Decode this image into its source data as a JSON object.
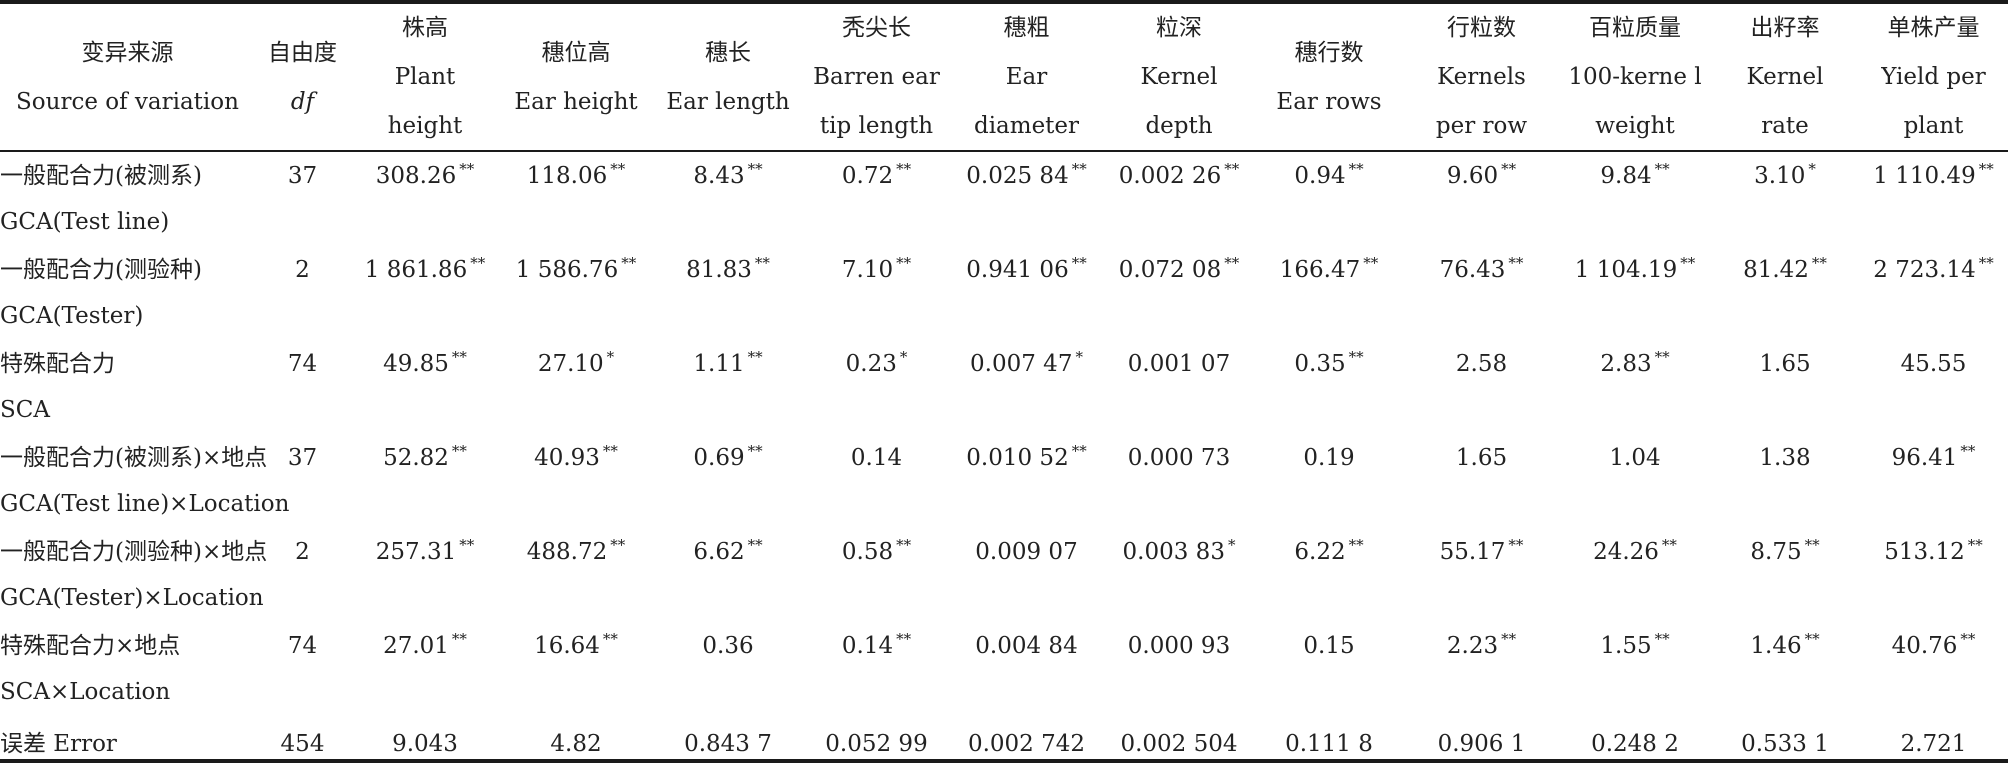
{
  "columns": [
    {
      "zh": "变异来源",
      "en": [
        "Source of variation"
      ]
    },
    {
      "zh": "自由度",
      "en": [
        "df"
      ]
    },
    {
      "zh": "株高",
      "en": [
        "Plant",
        "height"
      ]
    },
    {
      "zh": "穗位高",
      "en": [
        "Ear height"
      ]
    },
    {
      "zh": "穗长",
      "en": [
        "Ear length"
      ]
    },
    {
      "zh": "秃尖长",
      "en": [
        "Barren ear",
        "tip length"
      ]
    },
    {
      "zh": "穗粗",
      "en": [
        "Ear",
        "diameter"
      ]
    },
    {
      "zh": "粒深",
      "en": [
        "Kernel",
        "depth"
      ]
    },
    {
      "zh": "穗行数",
      "en": [
        "Ear rows"
      ]
    },
    {
      "zh": "行粒数",
      "en": [
        "Kernels",
        "per row"
      ]
    },
    {
      "zh": "百粒质量",
      "en": [
        "100-kerne l",
        "weight"
      ]
    },
    {
      "zh": "出籽率",
      "en": [
        "Kernel",
        "rate"
      ]
    },
    {
      "zh": "单株产量",
      "en": [
        "Yield per",
        "plant"
      ]
    }
  ],
  "rows": [
    {
      "label_zh": "一般配合力(被测系)",
      "label_en": "GCA(Test line)",
      "df": "37",
      "values": [
        {
          "v": "308.26",
          "s": "**"
        },
        {
          "v": "118.06",
          "s": "**"
        },
        {
          "v": "8.43",
          "s": "**"
        },
        {
          "v": "0.72",
          "s": "**"
        },
        {
          "v": "0.025 84",
          "s": "**"
        },
        {
          "v": "0.002 26",
          "s": "**"
        },
        {
          "v": "0.94",
          "s": "**"
        },
        {
          "v": "9.60",
          "s": "**"
        },
        {
          "v": "9.84",
          "s": "**"
        },
        {
          "v": "3.10",
          "s": "*"
        },
        {
          "v": "1 110.49",
          "s": "**"
        }
      ]
    },
    {
      "label_zh": "一般配合力(测验种)",
      "label_en": "GCA(Tester)",
      "df": "2",
      "values": [
        {
          "v": "1 861.86",
          "s": "**"
        },
        {
          "v": "1 586.76",
          "s": "**"
        },
        {
          "v": "81.83",
          "s": "**"
        },
        {
          "v": "7.10",
          "s": "**"
        },
        {
          "v": "0.941 06",
          "s": "**"
        },
        {
          "v": "0.072 08",
          "s": "**"
        },
        {
          "v": "166.47",
          "s": "**"
        },
        {
          "v": "76.43",
          "s": "**"
        },
        {
          "v": "1 104.19",
          "s": "**"
        },
        {
          "v": "81.42",
          "s": "**"
        },
        {
          "v": "2 723.14",
          "s": "**"
        }
      ]
    },
    {
      "label_zh": "特殊配合力",
      "label_en": "SCA",
      "df": "74",
      "values": [
        {
          "v": "49.85",
          "s": "**"
        },
        {
          "v": "27.10",
          "s": "*"
        },
        {
          "v": "1.11",
          "s": "**"
        },
        {
          "v": "0.23",
          "s": "*"
        },
        {
          "v": "0.007 47",
          "s": "*"
        },
        {
          "v": "0.001 07",
          "s": ""
        },
        {
          "v": "0.35",
          "s": "**"
        },
        {
          "v": "2.58",
          "s": ""
        },
        {
          "v": "2.83",
          "s": "**"
        },
        {
          "v": "1.65",
          "s": ""
        },
        {
          "v": "45.55",
          "s": ""
        }
      ]
    },
    {
      "label_zh": "一般配合力(被测系)×地点",
      "label_en": "GCA(Test line)×Location",
      "df": "37",
      "values": [
        {
          "v": "52.82",
          "s": "**"
        },
        {
          "v": "40.93",
          "s": "**"
        },
        {
          "v": "0.69",
          "s": "**"
        },
        {
          "v": "0.14",
          "s": ""
        },
        {
          "v": "0.010 52",
          "s": "**"
        },
        {
          "v": "0.000 73",
          "s": ""
        },
        {
          "v": "0.19",
          "s": ""
        },
        {
          "v": "1.65",
          "s": ""
        },
        {
          "v": "1.04",
          "s": ""
        },
        {
          "v": "1.38",
          "s": ""
        },
        {
          "v": "96.41",
          "s": "**"
        }
      ]
    },
    {
      "label_zh": "一般配合力(测验种)×地点",
      "label_en": "GCA(Tester)×Location",
      "df": "2",
      "values": [
        {
          "v": "257.31",
          "s": "**"
        },
        {
          "v": "488.72",
          "s": "**"
        },
        {
          "v": "6.62",
          "s": "**"
        },
        {
          "v": "0.58",
          "s": "**"
        },
        {
          "v": "0.009 07",
          "s": ""
        },
        {
          "v": "0.003 83",
          "s": "*"
        },
        {
          "v": "6.22",
          "s": "**"
        },
        {
          "v": "55.17",
          "s": "**"
        },
        {
          "v": "24.26",
          "s": "**"
        },
        {
          "v": "8.75",
          "s": "**"
        },
        {
          "v": "513.12",
          "s": "**"
        }
      ]
    },
    {
      "label_zh": "特殊配合力×地点",
      "label_en": "SCA×Location",
      "df": "74",
      "values": [
        {
          "v": "27.01",
          "s": "**"
        },
        {
          "v": "16.64",
          "s": "**"
        },
        {
          "v": "0.36",
          "s": ""
        },
        {
          "v": "0.14",
          "s": "**"
        },
        {
          "v": "0.004 84",
          "s": ""
        },
        {
          "v": "0.000 93",
          "s": ""
        },
        {
          "v": "0.15",
          "s": ""
        },
        {
          "v": "2.23",
          "s": "**"
        },
        {
          "v": "1.55",
          "s": "**"
        },
        {
          "v": "1.46",
          "s": "**"
        },
        {
          "v": "40.76",
          "s": "**"
        }
      ]
    },
    {
      "label_zh": "误差 Error",
      "label_en": "",
      "df": "454",
      "values": [
        {
          "v": "9.043",
          "s": ""
        },
        {
          "v": "4.82",
          "s": ""
        },
        {
          "v": "0.843 7",
          "s": ""
        },
        {
          "v": "0.052 99",
          "s": ""
        },
        {
          "v": "0.002 742",
          "s": ""
        },
        {
          "v": "0.002 504",
          "s": ""
        },
        {
          "v": "0.111 8",
          "s": ""
        },
        {
          "v": "0.906 1",
          "s": ""
        },
        {
          "v": "0.248 2",
          "s": ""
        },
        {
          "v": "0.533 1",
          "s": ""
        },
        {
          "v": "2.721",
          "s": ""
        }
      ]
    }
  ]
}
